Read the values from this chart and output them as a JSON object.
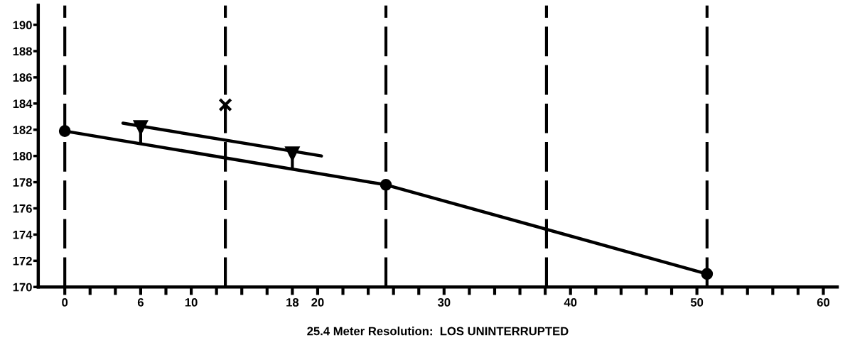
{
  "chart_data": {
    "type": "line",
    "xlabel": "25.4 Meter Resolution:  LOS UNINTERRUPTED",
    "xlim": [
      -2.1,
      61.1
    ],
    "ylim": [
      170,
      191.5
    ],
    "xticks": [
      0,
      {
        "value": 2,
        "label": null
      },
      {
        "value": 4,
        "label": null
      },
      6,
      {
        "value": 8,
        "label": null
      },
      10,
      {
        "value": 12,
        "label": null
      },
      {
        "value": 14,
        "label": null
      },
      {
        "value": 16,
        "label": null
      },
      18,
      20,
      {
        "value": 22,
        "label": null
      },
      {
        "value": 24,
        "label": null
      },
      {
        "value": 26,
        "label": null
      },
      {
        "value": 28,
        "label": null
      },
      30,
      {
        "value": 32,
        "label": null
      },
      {
        "value": 34,
        "label": null
      },
      {
        "value": 36,
        "label": null
      },
      {
        "value": 38,
        "label": null
      },
      40,
      {
        "value": 42,
        "label": null
      },
      {
        "value": 44,
        "label": null
      },
      {
        "value": 46,
        "label": null
      },
      {
        "value": 48,
        "label": null
      },
      50,
      {
        "value": 52,
        "label": null
      },
      {
        "value": 54,
        "label": null
      },
      {
        "value": 56,
        "label": null
      },
      {
        "value": 58,
        "label": null
      },
      60
    ],
    "yticks": [
      170,
      172,
      174,
      176,
      178,
      180,
      182,
      184,
      186,
      188,
      190
    ],
    "series": [
      {
        "color": "#000000",
        "marker": "circle",
        "x": [
          0,
          25.4,
          50.8
        ],
        "values": [
          181.9,
          177.8,
          171.0
        ]
      },
      {
        "color": "#000000",
        "marker": "none",
        "x": [
          4.6,
          20.3
        ],
        "values": [
          182.5,
          180.0
        ]
      },
      {
        "type": "scatter",
        "color": "#000000",
        "marker": "triangle",
        "x": [
          6,
          18
        ],
        "values": [
          182.2,
          180.2
        ],
        "errors": [
          [
            180.9,
            182.2
          ],
          [
            179.0,
            180.2
          ]
        ]
      },
      {
        "type": "scatter",
        "color": "#000000",
        "marker": "cross",
        "x": [
          12.7
        ],
        "values": [
          183.9
        ]
      }
    ],
    "ref_lines": [
      {
        "axis": "x",
        "value": 0,
        "color": "#000000",
        "line_style": "dashed"
      },
      {
        "axis": "x",
        "value": 12.7,
        "color": "#000000",
        "line_style": "dashed"
      },
      {
        "axis": "x",
        "value": 25.4,
        "color": "#000000",
        "line_style": "dashed"
      },
      {
        "axis": "x",
        "value": 38.1,
        "color": "#000000",
        "line_style": "dashed"
      },
      {
        "axis": "x",
        "value": 50.8,
        "color": "#000000",
        "line_style": "dashed"
      }
    ]
  }
}
